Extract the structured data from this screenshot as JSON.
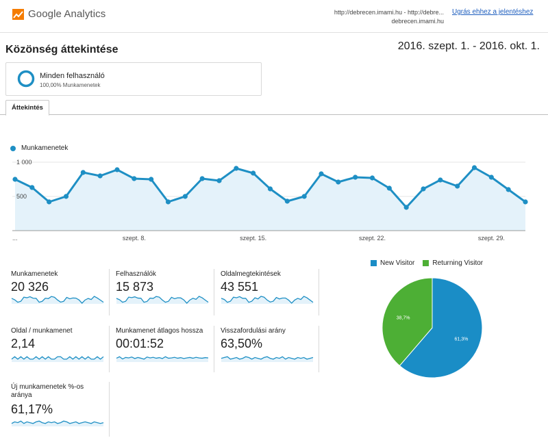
{
  "header": {
    "logo_text": "Google Analytics",
    "property_line1": "http://debrecen.imami.hu - http://debre...",
    "property_line2": "debrecen.imami.hu",
    "goto_report": "Ugrás ehhez a jelentéshez"
  },
  "page": {
    "title": "Közönség áttekintése",
    "date_range": "2016. szept. 1. - 2016. okt. 1."
  },
  "segment": {
    "name": "Minden felhasználó",
    "sub": "100,00% Munkamenetek",
    "ring_color": "#1e8fc4"
  },
  "tabs": [
    {
      "label": "Áttekintés",
      "active": true
    }
  ],
  "chart_data": [
    {
      "type": "area",
      "legend": [
        {
          "name": "Munkamenetek",
          "color": "#1e8fc4"
        }
      ],
      "series": [
        {
          "name": "Munkamenetek",
          "values": [
            750,
            630,
            420,
            500,
            850,
            800,
            890,
            760,
            750,
            420,
            500,
            760,
            730,
            910,
            840,
            610,
            430,
            500,
            830,
            710,
            780,
            770,
            620,
            340,
            610,
            740,
            650,
            920,
            780,
            600,
            420
          ]
        }
      ],
      "x": [
        "2016-09-01",
        "2016-09-02",
        "2016-09-03",
        "2016-09-04",
        "2016-09-05",
        "2016-09-06",
        "2016-09-07",
        "2016-09-08",
        "2016-09-09",
        "2016-09-10",
        "2016-09-11",
        "2016-09-12",
        "2016-09-13",
        "2016-09-14",
        "2016-09-15",
        "2016-09-16",
        "2016-09-17",
        "2016-09-18",
        "2016-09-19",
        "2016-09-20",
        "2016-09-21",
        "2016-09-22",
        "2016-09-23",
        "2016-09-24",
        "2016-09-25",
        "2016-09-26",
        "2016-09-27",
        "2016-09-28",
        "2016-09-29",
        "2016-09-30",
        "2016-10-01"
      ],
      "xticks": [
        {
          "label": "...",
          "index": 0
        },
        {
          "label": "szept. 8.",
          "index": 7
        },
        {
          "label": "szept. 15.",
          "index": 14
        },
        {
          "label": "szept. 22.",
          "index": 21
        },
        {
          "label": "szept. 29.",
          "index": 28
        }
      ],
      "yticks": [
        {
          "label": "1 000",
          "value": 1000
        },
        {
          "label": "500",
          "value": 500
        }
      ],
      "ylim": [
        0,
        1000
      ],
      "grid": true
    },
    {
      "type": "pie",
      "legend_placement": "top",
      "slices": [
        {
          "name": "New Visitor",
          "value": 61.3,
          "label": "61,3%",
          "color": "#1a8dc6"
        },
        {
          "name": "Returning Visitor",
          "value": 38.7,
          "label": "38,7%",
          "color": "#4daf35"
        }
      ]
    }
  ],
  "metrics": [
    {
      "label": "Munkamenetek",
      "value": "20 326",
      "spark": [
        750,
        630,
        420,
        500,
        850,
        800,
        890,
        760,
        750,
        420,
        500,
        760,
        730,
        910,
        840,
        610,
        430,
        500,
        830,
        710,
        780,
        770,
        620,
        340,
        610,
        740,
        650,
        920,
        780,
        600,
        420
      ]
    },
    {
      "label": "Felhasználók",
      "value": "15 873",
      "spark": [
        600,
        520,
        360,
        420,
        680,
        650,
        700,
        620,
        610,
        360,
        410,
        620,
        600,
        720,
        680,
        500,
        360,
        420,
        670,
        580,
        640,
        630,
        510,
        300,
        500,
        610,
        540,
        730,
        640,
        500,
        360
      ]
    },
    {
      "label": "Oldalmegtekintések",
      "value": "43 551",
      "spark": [
        1600,
        1400,
        900,
        1100,
        1800,
        1700,
        1900,
        1600,
        1600,
        900,
        1100,
        1700,
        1500,
        1950,
        1800,
        1300,
        950,
        1100,
        1750,
        1500,
        1650,
        1650,
        1300,
        750,
        1300,
        1600,
        1400,
        1950,
        1700,
        1300,
        900
      ]
    },
    {
      "label": "Oldal / munkamenet",
      "value": "2,14",
      "spark": [
        2.1,
        2.2,
        2.1,
        2.2,
        2.1,
        2.2,
        2.1,
        2.1,
        2.2,
        2.1,
        2.2,
        2.1,
        2.2,
        2.1,
        2.1,
        2.2,
        2.2,
        2.1,
        2.1,
        2.2,
        2.1,
        2.2,
        2.1,
        2.2,
        2.1,
        2.2,
        2.1,
        2.1,
        2.2,
        2.1,
        2.2
      ]
    },
    {
      "label": "Munkamenet átlagos hossza",
      "value": "00:01:52",
      "spark": [
        110,
        120,
        105,
        115,
        112,
        118,
        108,
        115,
        110,
        104,
        118,
        112,
        116,
        110,
        114,
        108,
        120,
        110,
        112,
        116,
        110,
        114,
        108,
        112,
        115,
        110,
        116,
        112,
        110,
        114,
        112
      ]
    },
    {
      "label": "Visszafordulási arány",
      "value": "63,50%",
      "spark": [
        63,
        64,
        65,
        62,
        63,
        64,
        62,
        63,
        65,
        64,
        62,
        64,
        63,
        62,
        64,
        65,
        63,
        62,
        64,
        63,
        65,
        62,
        64,
        63,
        62,
        64,
        63,
        64,
        62,
        63,
        64
      ]
    },
    {
      "label": "Új munkamenetek %-os aránya",
      "value": "61,17%",
      "spark": [
        61,
        61.2,
        61.1,
        61.3,
        61,
        61.2,
        61.1,
        61,
        61.2,
        61.3,
        61.1,
        61,
        61.2,
        61.1,
        61.2,
        61,
        61.1,
        61.3,
        61.2,
        61,
        61.1,
        61.2,
        61,
        61.1,
        61.2,
        61.1,
        61,
        61.2,
        61.1,
        61,
        61.1
      ]
    }
  ]
}
